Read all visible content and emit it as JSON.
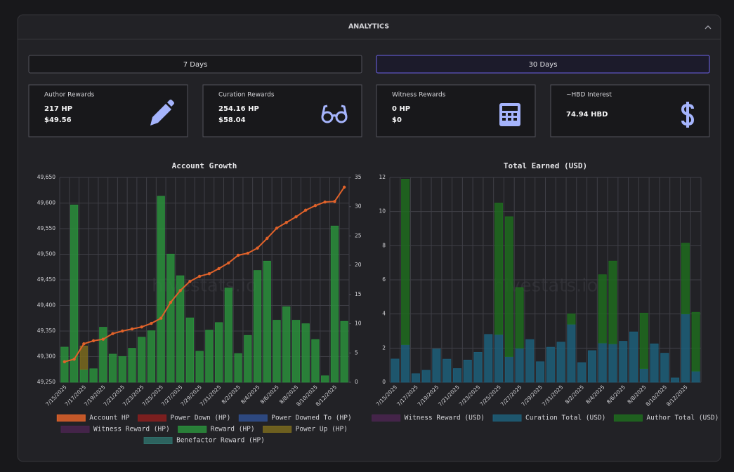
{
  "panel": {
    "title": "ANALYTICS"
  },
  "buttons": [
    "7 Days",
    "30 Days"
  ],
  "cards": [
    {
      "title": "Author Rewards",
      "lines": [
        "217 HP",
        "$49.56"
      ]
    },
    {
      "title": "Curation Rewards",
      "lines": [
        "254.16 HP",
        "$58.04"
      ]
    },
    {
      "title": "Witness Rewards",
      "lines": [
        "0 HP",
        "$0"
      ]
    },
    {
      "title": "~HBD Interest",
      "lines": [
        "74.94 HBD"
      ]
    }
  ],
  "watermark": "hivestats.io",
  "chart_data": [
    {
      "type": "bar",
      "title": "Account Growth",
      "stacked": true,
      "grid": true,
      "categories": [
        "7/15/2025",
        null,
        "7/17/2025",
        null,
        "7/19/2025",
        null,
        "7/21/2025",
        null,
        "7/23/2025",
        null,
        "7/25/2025",
        null,
        "7/27/2025",
        null,
        "7/29/2025",
        null,
        "7/31/2025",
        null,
        "8/2/2025",
        null,
        "8/4/2025",
        null,
        "8/6/2025",
        null,
        "8/8/2025",
        null,
        "8/10/2025",
        null,
        "8/12/2025",
        null
      ],
      "ylim": [
        49250,
        49650
      ],
      "yticks": [
        {
          "value": 49250,
          "label": "49,250"
        },
        {
          "value": 49300,
          "label": "49,300"
        },
        {
          "value": 49350,
          "label": "49,350"
        },
        {
          "value": 49400,
          "label": "49,400"
        },
        {
          "value": 49450,
          "label": "49,450"
        },
        {
          "value": 49500,
          "label": "49,500"
        },
        {
          "value": 49550,
          "label": "49,550"
        },
        {
          "value": 49600,
          "label": "49,600"
        },
        {
          "value": 49650,
          "label": "49,650"
        }
      ],
      "y2lim": [
        0,
        35
      ],
      "y2ticks": [
        0,
        5,
        10,
        15,
        20,
        25,
        30,
        35
      ],
      "series": [
        {
          "name": "Account HP",
          "color": "#e0622a",
          "type": "line",
          "values": [
            49290,
            49295,
            49325,
            49331,
            49334,
            49345,
            49350,
            49354,
            49358,
            49365,
            49375,
            49406,
            49429,
            49447,
            49457,
            49462,
            49472,
            49483,
            49498,
            49502,
            49512,
            49531,
            49551,
            49562,
            49573,
            49586,
            49595,
            49602,
            49603,
            49631
          ]
        },
        {
          "name": "Power Down (HP)",
          "color": "#8b1e1e"
        },
        {
          "name": "Power Downed To (HP)",
          "color": "#2f4f8f"
        },
        {
          "name": "Witness Reward (HP)",
          "color": "#4a2550"
        },
        {
          "name": "Reward (HP)",
          "color": "#2a8f3c",
          "axis": "y2",
          "values": [
            6.0,
            30.3,
            2.2,
            2.3,
            9.4,
            4.8,
            4.4,
            5.8,
            7.7,
            8.8,
            31.8,
            21.9,
            18.2,
            11.0,
            5.3,
            8.9,
            10.2,
            16.1,
            4.9,
            8.0,
            19.1,
            20.7,
            10.6,
            12.9,
            10.6,
            10.0,
            7.3,
            1.1,
            26.7,
            10.4
          ]
        },
        {
          "name": "Power Up (HP)",
          "color": "#7a6a1e",
          "axis": "y2",
          "values": [
            null,
            null,
            4.0,
            null,
            null,
            null,
            null,
            null,
            null,
            null,
            null,
            null,
            null,
            null,
            null,
            null,
            null,
            null,
            null,
            null,
            null,
            null,
            null,
            null,
            null,
            null,
            null,
            null,
            null,
            null
          ]
        },
        {
          "name": "Benefactor Reward (HP)",
          "color": "#2f6f6a"
        }
      ]
    },
    {
      "type": "bar",
      "title": "Total Earned (USD)",
      "stacked": true,
      "grid": true,
      "categories": [
        "7/15/2025",
        null,
        "7/17/2025",
        null,
        "7/19/2025",
        null,
        "7/21/2025",
        null,
        "7/23/2025",
        null,
        "7/25/2025",
        null,
        "7/27/2025",
        null,
        "7/29/2025",
        null,
        "7/31/2025",
        null,
        "8/2/2025",
        null,
        "8/4/2025",
        null,
        "8/6/2025",
        null,
        "8/8/2025",
        null,
        "8/10/2025",
        null,
        "8/12/2025",
        null
      ],
      "ylim": [
        0,
        12
      ],
      "yticks": [
        0,
        2,
        4,
        6,
        8,
        10,
        12
      ],
      "series": [
        {
          "name": "Witness Reward (USD)",
          "color": "#4a2550"
        },
        {
          "name": "Curation Total (USD)",
          "color": "#1d5f7a",
          "values": [
            1.36,
            2.2,
            0.5,
            0.7,
            1.95,
            1.35,
            0.8,
            1.3,
            1.75,
            2.8,
            2.8,
            1.5,
            2.0,
            2.5,
            1.2,
            2.05,
            2.35,
            3.4,
            1.15,
            1.85,
            2.3,
            2.25,
            2.4,
            2.95,
            0.8,
            2.25,
            1.7,
            0.25,
            4.0,
            0.65
          ]
        },
        {
          "name": "Author Total (USD)",
          "color": "#1e6b1e",
          "values": [
            null,
            9.7,
            null,
            null,
            null,
            null,
            null,
            null,
            null,
            null,
            7.7,
            8.2,
            3.55,
            null,
            null,
            null,
            null,
            0.6,
            null,
            null,
            4.0,
            4.85,
            null,
            null,
            3.25,
            null,
            null,
            null,
            4.15,
            3.45
          ]
        }
      ]
    }
  ]
}
